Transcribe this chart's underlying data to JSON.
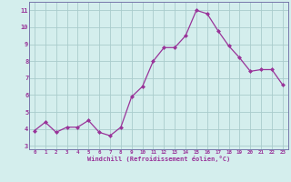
{
  "x": [
    0,
    1,
    2,
    3,
    4,
    5,
    6,
    7,
    8,
    9,
    10,
    11,
    12,
    13,
    14,
    15,
    16,
    17,
    18,
    19,
    20,
    21,
    22,
    23
  ],
  "y": [
    3.9,
    4.4,
    3.8,
    4.1,
    4.1,
    4.5,
    3.8,
    3.6,
    4.1,
    5.9,
    6.5,
    8.0,
    8.8,
    8.8,
    9.5,
    11.0,
    10.8,
    9.8,
    8.9,
    8.2,
    7.4,
    7.5,
    7.5,
    6.6
  ],
  "line_color": "#993399",
  "marker": "D",
  "marker_size": 2.0,
  "bg_color": "#d4eeed",
  "grid_color": "#aacccc",
  "xlabel": "Windchill (Refroidissement éolien,°C)",
  "xlabel_color": "#993399",
  "tick_color": "#993399",
  "spine_color": "#7777aa",
  "ylim": [
    2.8,
    11.5
  ],
  "xlim": [
    -0.5,
    23.5
  ],
  "yticks": [
    3,
    4,
    5,
    6,
    7,
    8,
    9,
    10,
    11
  ],
  "xticks": [
    0,
    1,
    2,
    3,
    4,
    5,
    6,
    7,
    8,
    9,
    10,
    11,
    12,
    13,
    14,
    15,
    16,
    17,
    18,
    19,
    20,
    21,
    22,
    23
  ],
  "xtick_labels": [
    "0",
    "1",
    "2",
    "3",
    "4",
    "5",
    "6",
    "7",
    "8",
    "9",
    "10",
    "11",
    "12",
    "13",
    "14",
    "15",
    "16",
    "17",
    "18",
    "19",
    "20",
    "21",
    "22",
    "23"
  ],
  "ytick_labels": [
    "3",
    "4",
    "5",
    "6",
    "7",
    "8",
    "9",
    "10",
    "11"
  ]
}
